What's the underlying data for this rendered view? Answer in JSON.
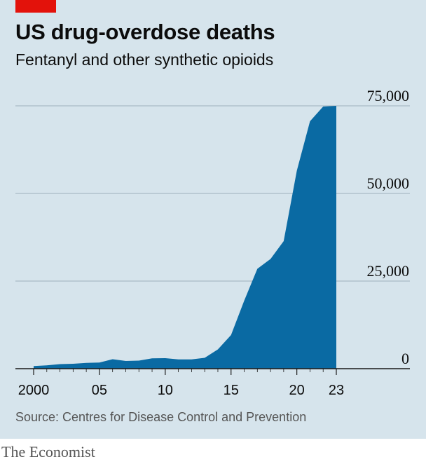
{
  "title": "US drug-overdose deaths",
  "subtitle": "Fentanyl and other synthetic opioids",
  "source": "Source: Centres for Disease Control and Prevention",
  "brand": "The Economist",
  "colors": {
    "background": "#d6e4ec",
    "area": "#0a6aa3",
    "brand_red": "#e3120b",
    "grid": "#9fb1bc"
  },
  "chart_data": {
    "type": "area",
    "x": [
      2000,
      2001,
      2002,
      2003,
      2004,
      2005,
      2006,
      2007,
      2008,
      2009,
      2010,
      2011,
      2012,
      2013,
      2014,
      2015,
      2016,
      2017,
      2018,
      2019,
      2020,
      2021,
      2022,
      2023
    ],
    "values": [
      750,
      950,
      1300,
      1400,
      1650,
      1750,
      2700,
      2200,
      2300,
      2950,
      3000,
      2650,
      2650,
      3100,
      5500,
      9600,
      19400,
      28500,
      31300,
      36400,
      56500,
      70600,
      74800,
      75000
    ],
    "ylim": [
      0,
      75000
    ],
    "yticks": [
      0,
      25000,
      50000,
      75000
    ],
    "ytick_labels": [
      "0",
      "25,000",
      "50,000",
      "75,000"
    ],
    "xticks": [
      2000,
      2005,
      2010,
      2015,
      2020,
      2023
    ],
    "xtick_labels": [
      "2000",
      "05",
      "10",
      "15",
      "20",
      "23"
    ],
    "grid": true,
    "xlabel": "",
    "ylabel": ""
  }
}
